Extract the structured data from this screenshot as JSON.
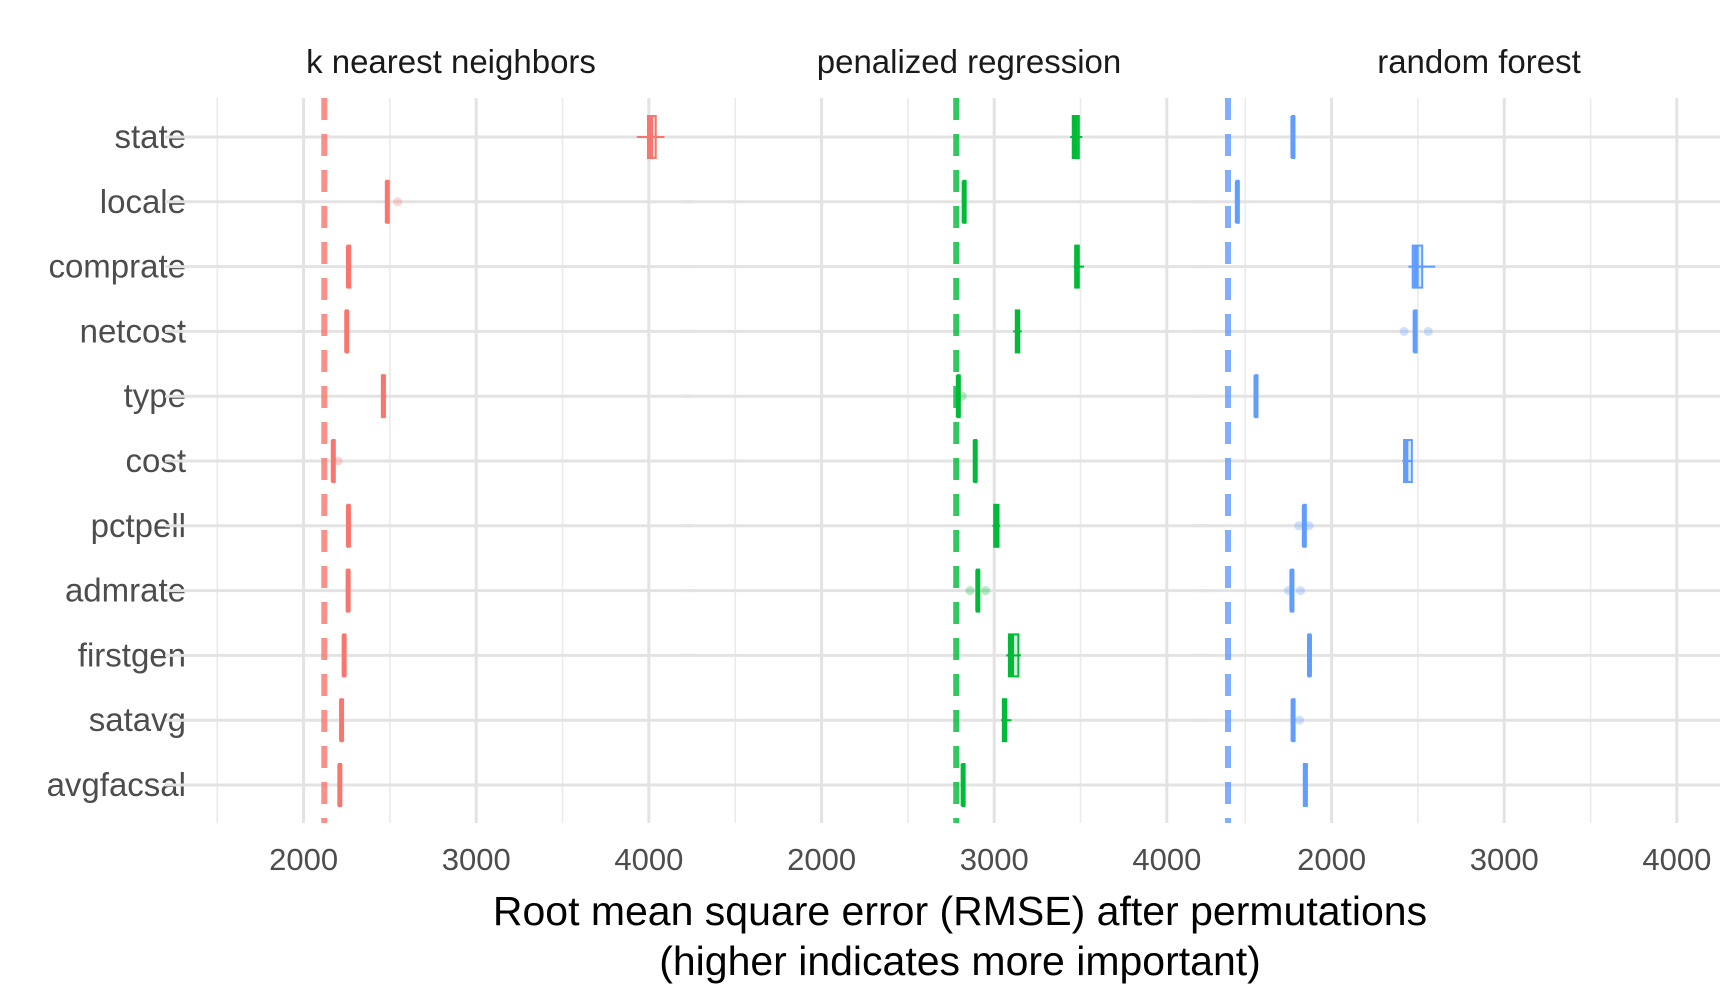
{
  "chart_data": {
    "type": "boxplot",
    "xlabel": "Root mean square error (RMSE) after permutations",
    "xlabel_line2": "(higher indicates more important)",
    "ylabel": "",
    "xlim": [
      1400,
      4250
    ],
    "x_ticks": [
      2000,
      3000,
      4000
    ],
    "x_tick_labels": [
      "2000",
      "3000",
      "4000"
    ],
    "grid": true,
    "legend": "none",
    "categories": [
      "state",
      "locale",
      "comprate",
      "netcost",
      "type",
      "cost",
      "pctpell",
      "admrate",
      "firstgen",
      "satavg",
      "avgfacsal"
    ],
    "facets": [
      {
        "title": "k nearest neighbors",
        "color": "#F8766D",
        "baseline_rmse": 2120,
        "boxes": [
          {
            "category": "state",
            "min": 3930,
            "q1": 3995,
            "median": 4010,
            "q3": 4040,
            "max": 4090
          },
          {
            "category": "locale",
            "min": 2475,
            "q1": 2480,
            "median": 2485,
            "q3": 2490,
            "max": 2495,
            "outliers": [
              2545
            ]
          },
          {
            "category": "comprate",
            "min": 2250,
            "q1": 2255,
            "median": 2260,
            "q3": 2270,
            "max": 2275
          },
          {
            "category": "netcost",
            "min": 2240,
            "q1": 2245,
            "median": 2250,
            "q3": 2255,
            "max": 2260
          },
          {
            "category": "type",
            "min": 2450,
            "q1": 2455,
            "median": 2462,
            "q3": 2470,
            "max": 2480
          },
          {
            "category": "cost",
            "min": 2165,
            "q1": 2168,
            "median": 2172,
            "q3": 2176,
            "max": 2180,
            "outliers": [
              2200
            ]
          },
          {
            "category": "pctpell",
            "min": 2250,
            "q1": 2255,
            "median": 2260,
            "q3": 2265,
            "max": 2275
          },
          {
            "category": "admrate",
            "min": 2250,
            "q1": 2253,
            "median": 2258,
            "q3": 2263,
            "max": 2268
          },
          {
            "category": "firstgen",
            "min": 2225,
            "q1": 2230,
            "median": 2235,
            "q3": 2240,
            "max": 2248
          },
          {
            "category": "satavg",
            "min": 2210,
            "q1": 2215,
            "median": 2220,
            "q3": 2225,
            "max": 2232
          },
          {
            "category": "avgfacsal",
            "min": 2200,
            "q1": 2205,
            "median": 2210,
            "q3": 2215,
            "max": 2220
          }
        ]
      },
      {
        "title": "penalized regression",
        "color": "#00BA38",
        "baseline_rmse": 2780,
        "boxes": [
          {
            "category": "state",
            "min": 3440,
            "q1": 3455,
            "median": 3470,
            "q3": 3490,
            "max": 3510
          },
          {
            "category": "locale",
            "min": 2818,
            "q1": 2822,
            "median": 2826,
            "q3": 2830,
            "max": 2835
          },
          {
            "category": "comprate",
            "min": 3460,
            "q1": 3470,
            "median": 3478,
            "q3": 3490,
            "max": 3520
          },
          {
            "category": "netcost",
            "min": 3110,
            "q1": 3125,
            "median": 3135,
            "q3": 3145,
            "max": 3160
          },
          {
            "category": "type",
            "min": 2785,
            "q1": 2788,
            "median": 2792,
            "q3": 2796,
            "max": 2800,
            "outliers": [
              2815
            ]
          },
          {
            "category": "cost",
            "min": 2880,
            "q1": 2885,
            "median": 2890,
            "q3": 2895,
            "max": 2900
          },
          {
            "category": "pctpell",
            "min": 2990,
            "q1": 3000,
            "median": 3012,
            "q3": 3025,
            "max": 3035
          },
          {
            "category": "admrate",
            "min": 2895,
            "q1": 2900,
            "median": 2905,
            "q3": 2910,
            "max": 2915,
            "outliers": [
              2860,
              2950
            ]
          },
          {
            "category": "firstgen",
            "min": 3070,
            "q1": 3085,
            "median": 3100,
            "q3": 3140,
            "max": 3155
          },
          {
            "category": "satavg",
            "min": 3040,
            "q1": 3050,
            "median": 3060,
            "q3": 3070,
            "max": 3100
          },
          {
            "category": "avgfacsal",
            "min": 2812,
            "q1": 2816,
            "median": 2820,
            "q3": 2824,
            "max": 2828
          }
        ]
      },
      {
        "title": "random forest",
        "color": "#619CFF",
        "baseline_rmse": 1400,
        "boxes": [
          {
            "category": "state",
            "min": 1768,
            "q1": 1772,
            "median": 1776,
            "q3": 1780,
            "max": 1785
          },
          {
            "category": "locale",
            "min": 1445,
            "q1": 1450,
            "median": 1454,
            "q3": 1458,
            "max": 1462
          },
          {
            "category": "comprate",
            "min": 2445,
            "q1": 2470,
            "median": 2490,
            "q3": 2525,
            "max": 2600
          },
          {
            "category": "netcost",
            "min": 2475,
            "q1": 2480,
            "median": 2484,
            "q3": 2488,
            "max": 2492,
            "outliers": [
              2420,
              2560
            ]
          },
          {
            "category": "type",
            "min": 1555,
            "q1": 1558,
            "median": 1562,
            "q3": 1566,
            "max": 1570
          },
          {
            "category": "cost",
            "min": 2410,
            "q1": 2420,
            "median": 2430,
            "q3": 2465,
            "max": 2470
          },
          {
            "category": "pctpell",
            "min": 1835,
            "q1": 1838,
            "median": 1842,
            "q3": 1846,
            "max": 1850,
            "outliers": [
              1810,
              1870
            ]
          },
          {
            "category": "admrate",
            "min": 1762,
            "q1": 1766,
            "median": 1770,
            "q3": 1774,
            "max": 1778,
            "outliers": [
              1750,
              1820
            ]
          },
          {
            "category": "firstgen",
            "min": 1862,
            "q1": 1866,
            "median": 1872,
            "q3": 1878,
            "max": 1885
          },
          {
            "category": "satavg",
            "min": 1770,
            "q1": 1773,
            "median": 1777,
            "q3": 1781,
            "max": 1785,
            "outliers": [
              1815
            ]
          },
          {
            "category": "avgfacsal",
            "min": 1835,
            "q1": 1840,
            "median": 1848,
            "q3": 1856,
            "max": 1862
          }
        ]
      }
    ]
  }
}
